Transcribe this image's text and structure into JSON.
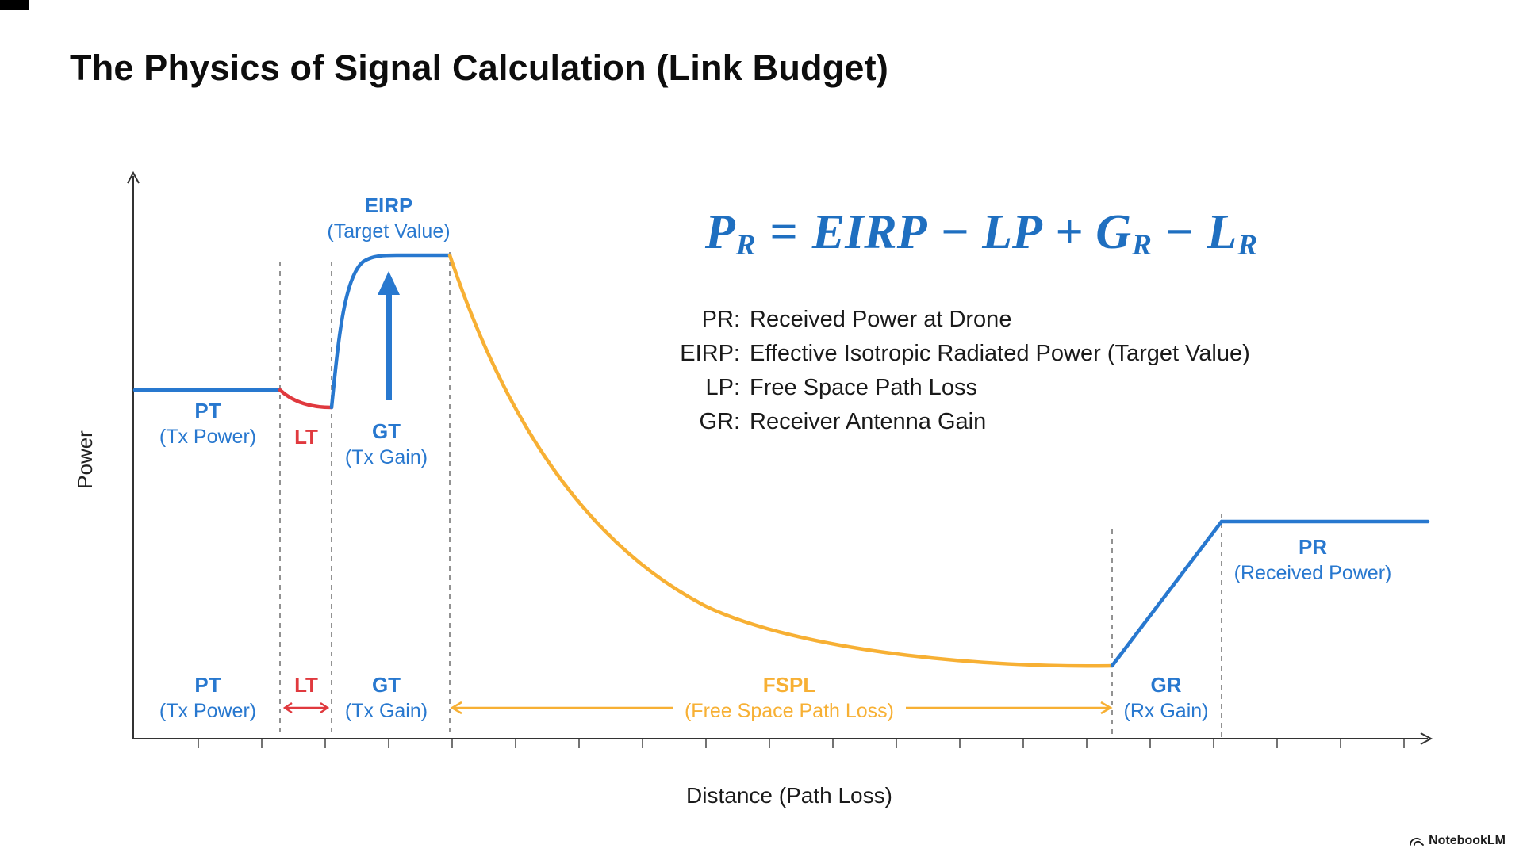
{
  "page": {
    "title": "The Physics of Signal Calculation (Link Budget)"
  },
  "colors": {
    "blue": "#2878cf",
    "red": "#e0393e",
    "yellow": "#f7b034",
    "text": "#141414"
  },
  "chart": {
    "y_axis_label": "Power",
    "x_axis_label": "Distance (Path Loss)",
    "eirp": {
      "abbr": "EIRP",
      "desc": "(Target Value)"
    },
    "pt_upper": {
      "abbr": "PT",
      "desc": "(Tx Power)"
    },
    "lt_upper": {
      "abbr": "LT"
    },
    "gt_upper": {
      "abbr": "GT",
      "desc": "(Tx Gain)"
    },
    "pr": {
      "abbr": "PR",
      "desc": "(Received Power)"
    },
    "pt_lower": {
      "abbr": "PT",
      "desc": "(Tx Power)"
    },
    "lt_lower": {
      "abbr": "LT"
    },
    "gt_lower": {
      "abbr": "GT",
      "desc": "(Tx Gain)"
    },
    "fspl": {
      "abbr": "FSPL",
      "desc": "(Free Space Path Loss)"
    },
    "gr": {
      "abbr": "GR",
      "desc": "(Rx Gain)"
    }
  },
  "formula": {
    "lhs_base": "P",
    "lhs_sub": "R",
    "eq": "=",
    "term1": "EIRP",
    "op1": "−",
    "term2": "LP",
    "op2": "+",
    "term3_base": "G",
    "term3_sub": "R",
    "op3": "−",
    "term4_base": "L",
    "term4_sub": "R"
  },
  "legend": {
    "items": [
      {
        "abbr": "PR:",
        "text": "Received Power at Drone"
      },
      {
        "abbr": "EIRP:",
        "text": "Effective Isotropic Radiated Power (Target Value)"
      },
      {
        "abbr": "LP:",
        "text": "Free Space Path Loss"
      },
      {
        "abbr": "GR:",
        "text": "Receiver Antenna Gain"
      }
    ]
  },
  "watermark": {
    "label": "NotebookLM"
  }
}
